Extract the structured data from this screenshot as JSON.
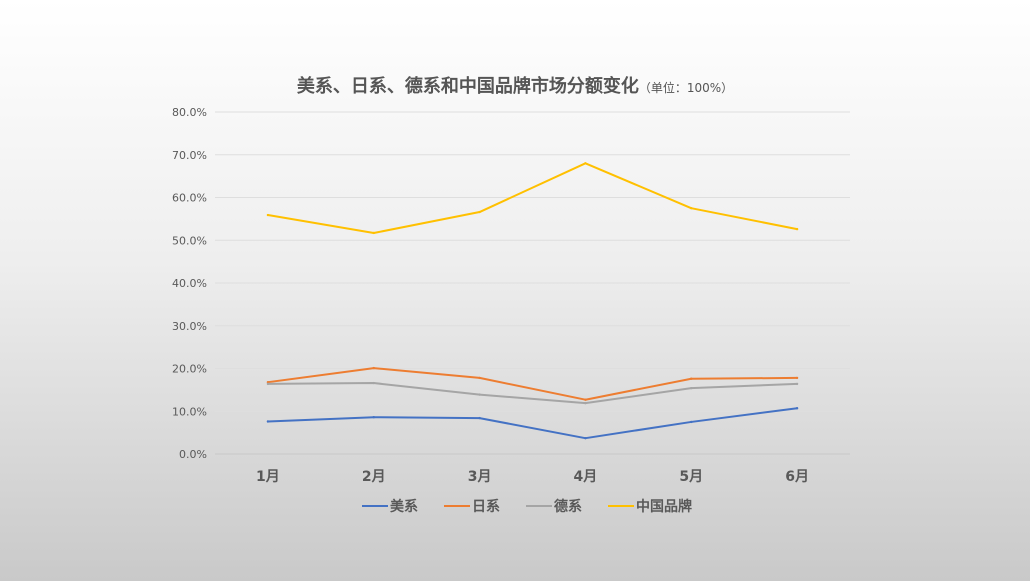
{
  "chart_data": {
    "type": "line",
    "title": "美系、日系、德系和中国品牌市场分额变化",
    "subtitle": "（单位：100%）",
    "xlabel": "",
    "ylabel": "",
    "categories": [
      "1月",
      "2月",
      "3月",
      "4月",
      "5月",
      "6月"
    ],
    "ylim": [
      0,
      80
    ],
    "yticks": [
      "0.0%",
      "10.0%",
      "20.0%",
      "30.0%",
      "40.0%",
      "50.0%",
      "60.0%",
      "70.0%",
      "80.0%"
    ],
    "grid": true,
    "legend_position": "bottom",
    "series": [
      {
        "name": "美系",
        "color": "#4472C4",
        "values": [
          7.6,
          8.6,
          8.4,
          3.7,
          7.5,
          10.7
        ]
      },
      {
        "name": "日系",
        "color": "#ED7D31",
        "values": [
          16.8,
          20.1,
          17.8,
          12.7,
          17.6,
          17.8
        ]
      },
      {
        "name": "德系",
        "color": "#A5A5A5",
        "values": [
          16.4,
          16.6,
          13.9,
          11.9,
          15.4,
          16.4
        ]
      },
      {
        "name": "中国品牌",
        "color": "#FFC000",
        "values": [
          55.9,
          51.7,
          56.6,
          68.0,
          57.5,
          52.6
        ]
      }
    ]
  }
}
